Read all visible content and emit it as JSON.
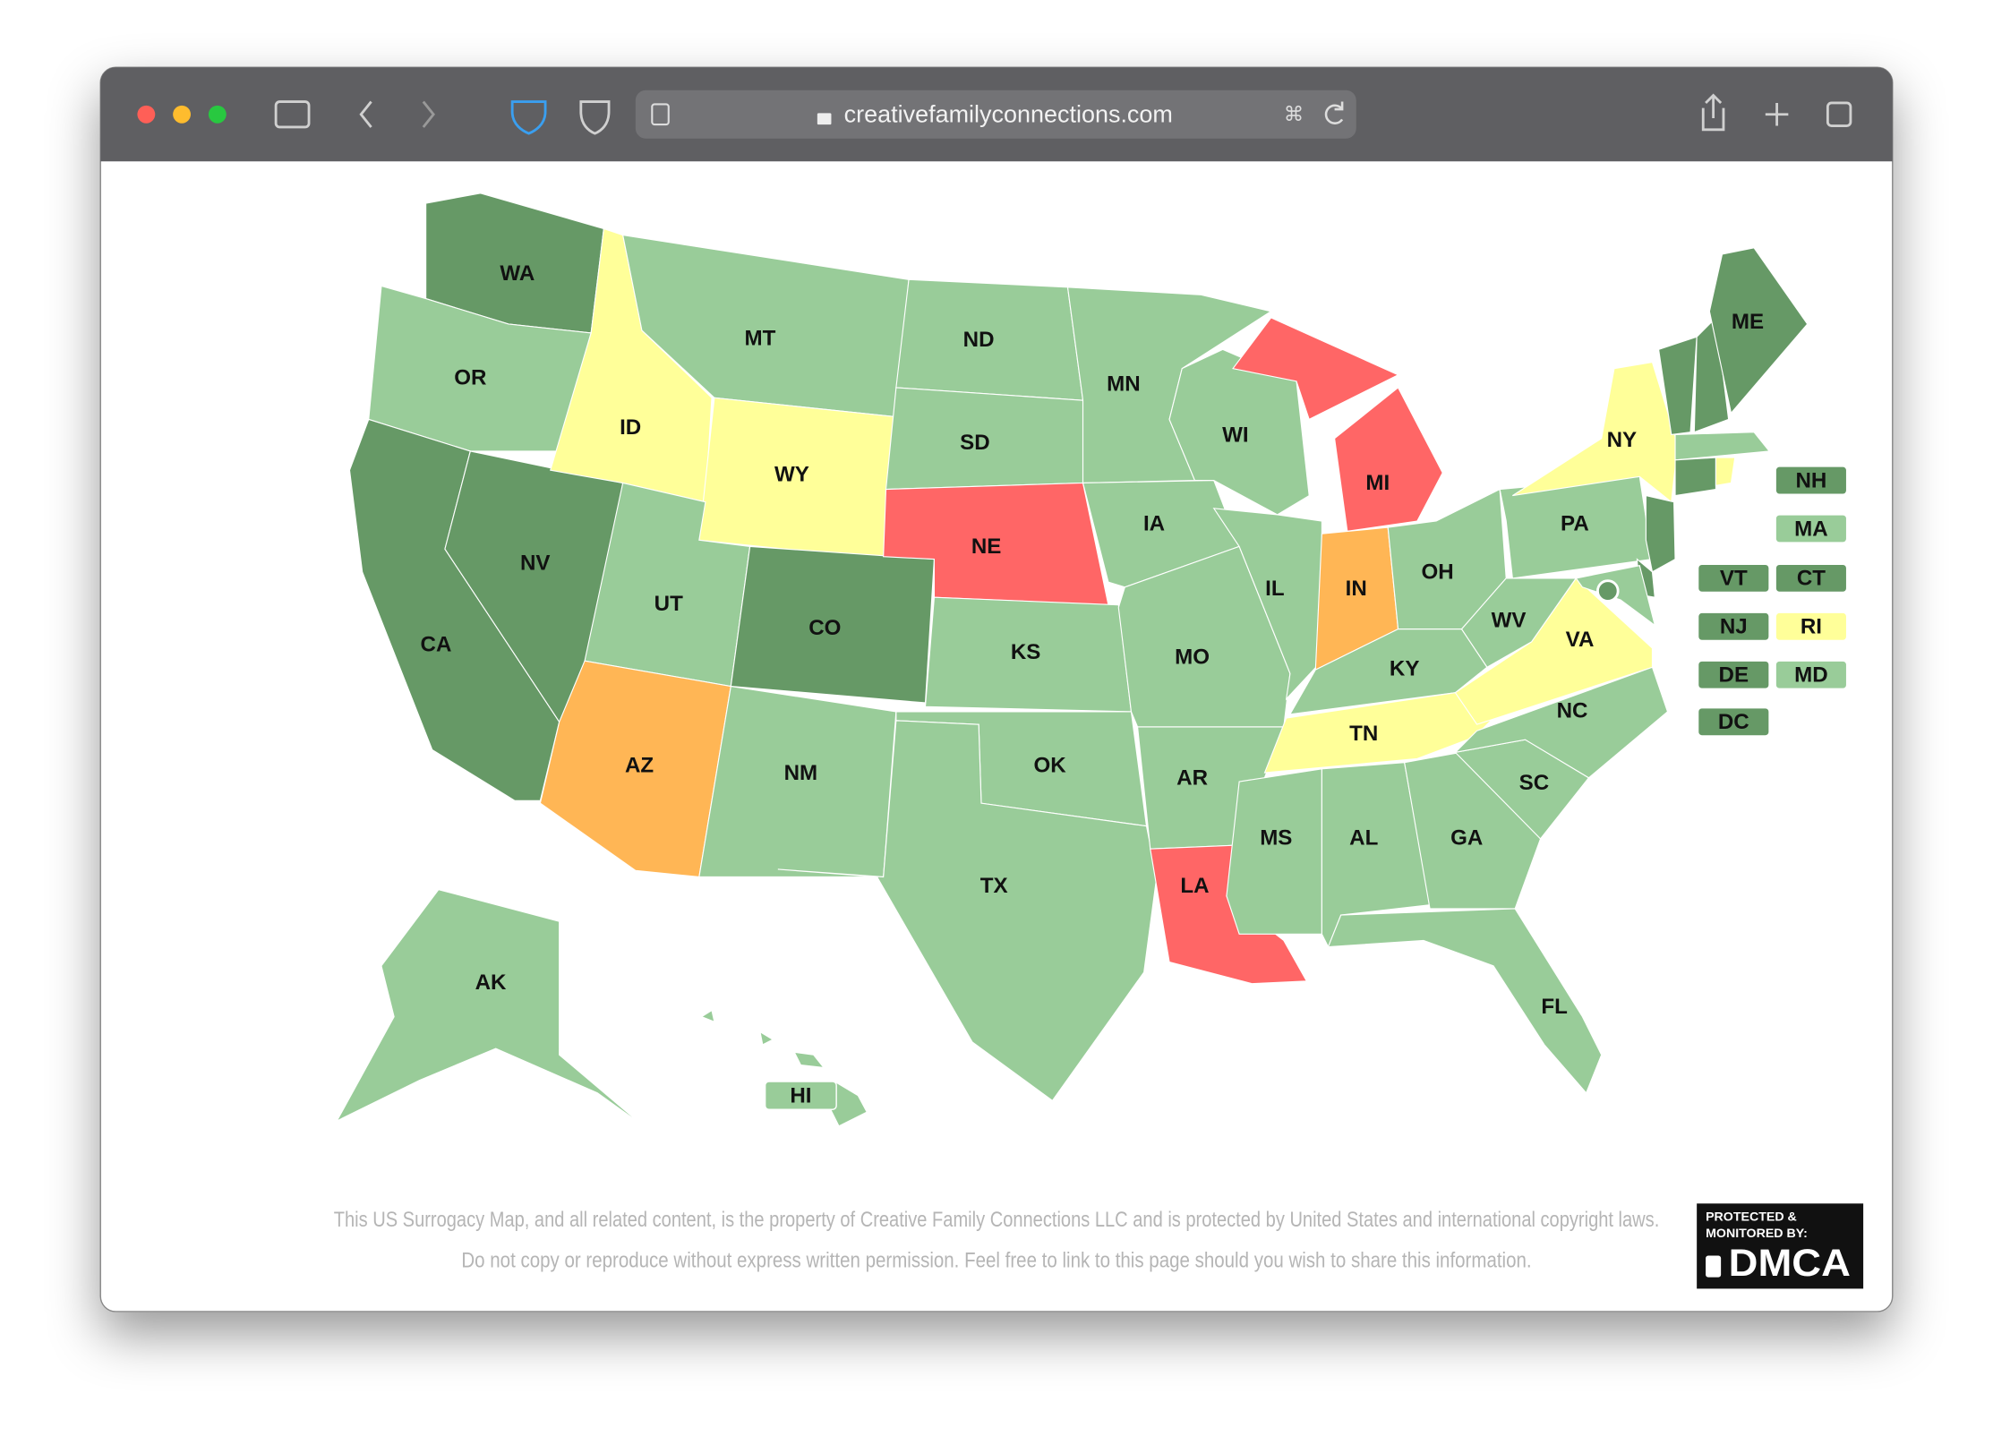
{
  "browser": {
    "url": "creativefamilyconnections.com"
  },
  "map": {
    "states": [
      {
        "label": "WA",
        "color": "#669966"
      },
      {
        "label": "OR",
        "color": "#99cc99"
      },
      {
        "label": "CA",
        "color": "#669966"
      },
      {
        "label": "NV",
        "color": "#669966"
      },
      {
        "label": "ID",
        "color": "#ffff99"
      },
      {
        "label": "MT",
        "color": "#99cc99"
      },
      {
        "label": "WY",
        "color": "#ffff99"
      },
      {
        "label": "UT",
        "color": "#99cc99"
      },
      {
        "label": "CO",
        "color": "#669966"
      },
      {
        "label": "AZ",
        "color": "#ffb655"
      },
      {
        "label": "NM",
        "color": "#99cc99"
      },
      {
        "label": "ND",
        "color": "#99cc99"
      },
      {
        "label": "SD",
        "color": "#99cc99"
      },
      {
        "label": "NE",
        "color": "#ff6666"
      },
      {
        "label": "KS",
        "color": "#99cc99"
      },
      {
        "label": "OK",
        "color": "#99cc99"
      },
      {
        "label": "TX",
        "color": "#99cc99"
      },
      {
        "label": "MN",
        "color": "#99cc99"
      },
      {
        "label": "IA",
        "color": "#99cc99"
      },
      {
        "label": "MO",
        "color": "#99cc99"
      },
      {
        "label": "AR",
        "color": "#99cc99"
      },
      {
        "label": "LA",
        "color": "#ff6666"
      },
      {
        "label": "WI",
        "color": "#99cc99"
      },
      {
        "label": "IL",
        "color": "#99cc99"
      },
      {
        "label": "MI",
        "color": "#ff6666"
      },
      {
        "label": "IN",
        "color": "#ffb655"
      },
      {
        "label": "OH",
        "color": "#99cc99"
      },
      {
        "label": "KY",
        "color": "#99cc99"
      },
      {
        "label": "TN",
        "color": "#ffff99"
      },
      {
        "label": "MS",
        "color": "#99cc99"
      },
      {
        "label": "AL",
        "color": "#99cc99"
      },
      {
        "label": "GA",
        "color": "#99cc99"
      },
      {
        "label": "FL",
        "color": "#99cc99"
      },
      {
        "label": "SC",
        "color": "#99cc99"
      },
      {
        "label": "NC",
        "color": "#99cc99"
      },
      {
        "label": "VA",
        "color": "#ffff99"
      },
      {
        "label": "WV",
        "color": "#99cc99"
      },
      {
        "label": "PA",
        "color": "#99cc99"
      },
      {
        "label": "NY",
        "color": "#ffff99"
      },
      {
        "label": "VT",
        "color": "#669966"
      },
      {
        "label": "NH",
        "color": "#669966"
      },
      {
        "label": "ME",
        "color": "#669966"
      },
      {
        "label": "MA",
        "color": "#99cc99"
      },
      {
        "label": "CT",
        "color": "#669966"
      },
      {
        "label": "RI",
        "color": "#ffff99"
      },
      {
        "label": "NJ",
        "color": "#669966"
      },
      {
        "label": "DE",
        "color": "#669966"
      },
      {
        "label": "MD",
        "color": "#99cc99"
      },
      {
        "label": "DC",
        "color": "#669966"
      },
      {
        "label": "AK",
        "color": "#99cc99"
      },
      {
        "label": "HI",
        "color": "#99cc99"
      }
    ]
  },
  "footer": {
    "lines": [
      "This US Surrogacy Map, and all related content, is the property of Creative Family Connections LLC and is protected by United States and international copyright laws.",
      "Do not copy or reproduce without express written permission. Feel free to link to this page should you wish to share this information."
    ]
  },
  "badge": {
    "line1": "PROTECTED &",
    "line2": "MONITORED BY:",
    "brand": "DMCA"
  }
}
